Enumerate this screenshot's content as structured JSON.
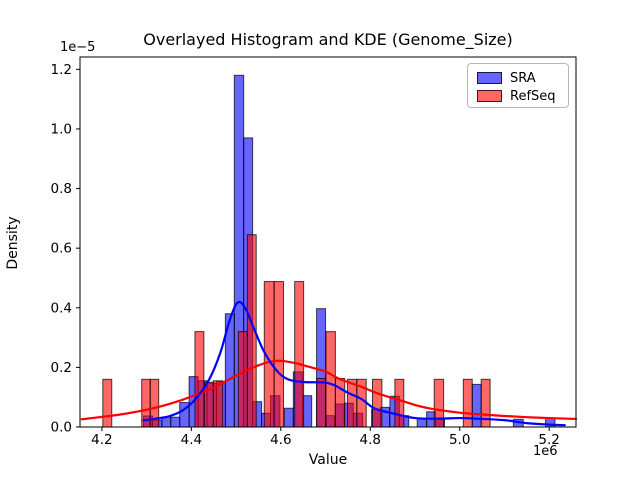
{
  "title": "Overlayed Histogram and KDE (Genome_Size)",
  "axis": {
    "xlabel": "Value",
    "ylabel": "Density",
    "x_offset_label": "1e6",
    "y_offset_label": "1e−5"
  },
  "legend": {
    "items": [
      {
        "label": "SRA",
        "patch_color": "#6666ff"
      },
      {
        "label": "RefSeq",
        "patch_color": "#ff6666"
      }
    ]
  },
  "colors": {
    "sra_fill": "rgba(0,0,255,0.6)",
    "refseq_fill": "rgba(255,0,0,0.6)",
    "bar_edge": "rgba(0,0,0,0.72)",
    "sra_kde_line": "#0000ff",
    "refseq_kde_line": "#ff0000",
    "spine": "#000000"
  },
  "chart_data": {
    "type": "bar",
    "subtype": "overlaid-histogram-with-kde",
    "title": "Overlayed Histogram and KDE (Genome_Size)",
    "xlabel": "Value",
    "ylabel": "Density",
    "x_scale_factor": 1000000,
    "y_scale_factor": 1e-05,
    "xlim": [
      4.151,
      5.26
    ],
    "ylim": [
      0,
      1.2414
    ],
    "xticks": [
      4.2,
      4.4,
      4.6,
      4.8,
      5.0,
      5.2
    ],
    "yticks": [
      0.0,
      0.2,
      0.4,
      0.6,
      0.8,
      1.0,
      1.2
    ],
    "grid": false,
    "legend_position": "upper right",
    "series": [
      {
        "name": "SRA",
        "kind": "histogram",
        "bars": [
          [
            4.293,
            4.313,
            0.037
          ],
          [
            4.313,
            4.334,
            0.023
          ],
          [
            4.334,
            4.354,
            0.033
          ],
          [
            4.354,
            4.374,
            0.033
          ],
          [
            4.374,
            4.395,
            0.082
          ],
          [
            4.395,
            4.415,
            0.169
          ],
          [
            4.415,
            4.435,
            0.155
          ],
          [
            4.435,
            4.456,
            0.147
          ],
          [
            4.456,
            4.476,
            0.153
          ],
          [
            4.476,
            4.496,
            0.38
          ],
          [
            4.496,
            4.517,
            1.18
          ],
          [
            4.517,
            4.537,
            0.97
          ],
          [
            4.537,
            4.557,
            0.085
          ],
          [
            4.557,
            4.577,
            0.046
          ],
          [
            4.577,
            4.598,
            0.105
          ],
          [
            4.608,
            4.628,
            0.063
          ],
          [
            4.628,
            4.649,
            0.185
          ],
          [
            4.649,
            4.669,
            0.105
          ],
          [
            4.68,
            4.7,
            0.397
          ],
          [
            4.7,
            4.72,
            0.038
          ],
          [
            4.722,
            4.742,
            0.077
          ],
          [
            4.742,
            4.762,
            0.08
          ],
          [
            4.762,
            4.783,
            0.046
          ],
          [
            4.803,
            4.823,
            0.06
          ],
          [
            4.823,
            4.843,
            0.066
          ],
          [
            4.844,
            4.865,
            0.103
          ],
          [
            4.865,
            4.886,
            0.038
          ],
          [
            4.905,
            4.926,
            0.029
          ],
          [
            4.926,
            4.946,
            0.051
          ],
          [
            4.946,
            4.966,
            0.029
          ],
          [
            5.028,
            5.048,
            0.143
          ],
          [
            5.12,
            5.142,
            0.026
          ],
          [
            5.192,
            5.213,
            0.03
          ]
        ],
        "kde": [
          [
            4.293,
            0.022
          ],
          [
            4.32,
            0.028
          ],
          [
            4.35,
            0.036
          ],
          [
            4.38,
            0.055
          ],
          [
            4.41,
            0.095
          ],
          [
            4.44,
            0.16
          ],
          [
            4.465,
            0.25
          ],
          [
            4.485,
            0.355
          ],
          [
            4.503,
            0.417
          ],
          [
            4.52,
            0.4
          ],
          [
            4.54,
            0.33
          ],
          [
            4.56,
            0.26
          ],
          [
            4.58,
            0.21
          ],
          [
            4.6,
            0.175
          ],
          [
            4.62,
            0.158
          ],
          [
            4.65,
            0.151
          ],
          [
            4.68,
            0.15
          ],
          [
            4.7,
            0.149
          ],
          [
            4.72,
            0.14
          ],
          [
            4.75,
            0.115
          ],
          [
            4.78,
            0.094
          ],
          [
            4.81,
            0.062
          ],
          [
            4.85,
            0.046
          ],
          [
            4.9,
            0.03
          ],
          [
            4.95,
            0.028
          ],
          [
            5.0,
            0.03
          ],
          [
            5.05,
            0.027
          ],
          [
            5.1,
            0.023
          ],
          [
            5.15,
            0.013
          ],
          [
            5.2,
            0.008
          ],
          [
            5.235,
            0.006
          ]
        ]
      },
      {
        "name": "RefSeq",
        "kind": "histogram",
        "bars": [
          [
            4.202,
            4.222,
            0.16
          ],
          [
            4.289,
            4.308,
            0.16
          ],
          [
            4.308,
            4.327,
            0.16
          ],
          [
            4.408,
            4.428,
            0.32
          ],
          [
            4.429,
            4.449,
            0.15
          ],
          [
            4.449,
            4.47,
            0.155
          ],
          [
            4.505,
            4.525,
            0.32
          ],
          [
            4.525,
            4.545,
            0.645
          ],
          [
            4.563,
            4.585,
            0.488
          ],
          [
            4.585,
            4.606,
            0.488
          ],
          [
            4.631,
            4.651,
            0.488
          ],
          [
            4.68,
            4.7,
            0.163
          ],
          [
            4.701,
            4.722,
            0.32
          ],
          [
            4.722,
            4.743,
            0.163
          ],
          [
            4.749,
            4.77,
            0.16
          ],
          [
            4.77,
            4.791,
            0.16
          ],
          [
            4.805,
            4.826,
            0.16
          ],
          [
            4.855,
            4.875,
            0.16
          ],
          [
            4.943,
            4.964,
            0.16
          ],
          [
            5.008,
            5.028,
            0.16
          ],
          [
            5.048,
            5.068,
            0.16
          ]
        ],
        "kde": [
          [
            4.155,
            0.026
          ],
          [
            4.2,
            0.034
          ],
          [
            4.25,
            0.044
          ],
          [
            4.3,
            0.058
          ],
          [
            4.35,
            0.077
          ],
          [
            4.4,
            0.102
          ],
          [
            4.45,
            0.133
          ],
          [
            4.5,
            0.172
          ],
          [
            4.55,
            0.207
          ],
          [
            4.59,
            0.222
          ],
          [
            4.63,
            0.215
          ],
          [
            4.66,
            0.203
          ],
          [
            4.7,
            0.186
          ],
          [
            4.73,
            0.162
          ],
          [
            4.78,
            0.135
          ],
          [
            4.82,
            0.111
          ],
          [
            4.87,
            0.088
          ],
          [
            4.91,
            0.07
          ],
          [
            4.95,
            0.058
          ],
          [
            5.0,
            0.048
          ],
          [
            5.05,
            0.042
          ],
          [
            5.1,
            0.037
          ],
          [
            5.15,
            0.033
          ],
          [
            5.2,
            0.03
          ],
          [
            5.26,
            0.027
          ]
        ]
      }
    ]
  }
}
